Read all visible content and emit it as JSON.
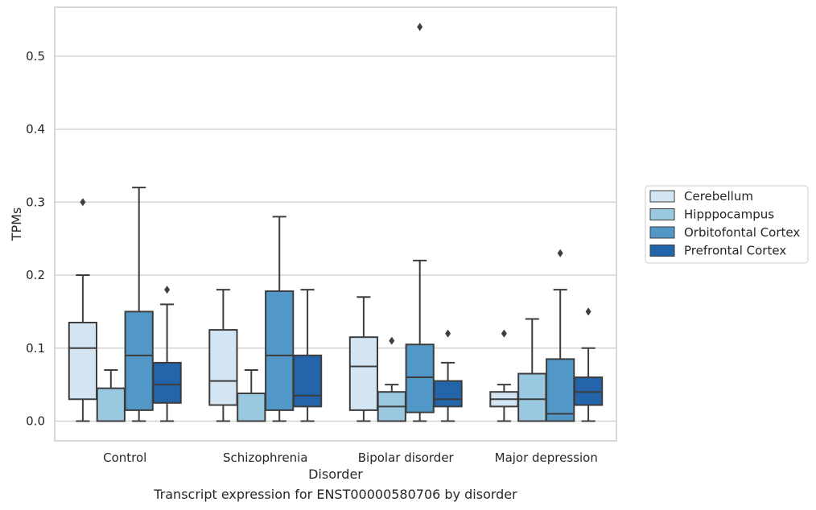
{
  "chart_data": {
    "type": "box",
    "xlabel": "Disorder",
    "ylabel": "TPMs",
    "caption": "Transcript expression for ENST00000580706 by disorder",
    "ylim": [
      -0.027,
      0.567
    ],
    "yticks": [
      0.0,
      0.1,
      0.2,
      0.3,
      0.4,
      0.5
    ],
    "ytick_labels": [
      "0.0",
      "0.1",
      "0.2",
      "0.3",
      "0.4",
      "0.5"
    ],
    "grid": "horizontal",
    "legend_position": "right",
    "categories": [
      "Control",
      "Schizophrenia",
      "Bipolar disorder",
      "Major depression"
    ],
    "series": [
      {
        "name": "Cerebellum",
        "color": "#d3e4f3",
        "boxes": [
          {
            "whislo": 0.0,
            "q1": 0.03,
            "med": 0.1,
            "q3": 0.135,
            "whishi": 0.2,
            "fliers": [
              0.3
            ]
          },
          {
            "whislo": 0.0,
            "q1": 0.022,
            "med": 0.055,
            "q3": 0.125,
            "whishi": 0.18,
            "fliers": []
          },
          {
            "whislo": 0.0,
            "q1": 0.015,
            "med": 0.075,
            "q3": 0.115,
            "whishi": 0.17,
            "fliers": []
          },
          {
            "whislo": 0.0,
            "q1": 0.02,
            "med": 0.03,
            "q3": 0.04,
            "whishi": 0.05,
            "fliers": [
              0.12
            ]
          }
        ]
      },
      {
        "name": "Hipppocampus",
        "color": "#9ac8e0",
        "boxes": [
          {
            "whislo": 0.0,
            "q1": 0.0,
            "med": 0.0,
            "q3": 0.045,
            "whishi": 0.07,
            "fliers": []
          },
          {
            "whislo": 0.0,
            "q1": 0.0,
            "med": 0.0,
            "q3": 0.038,
            "whishi": 0.07,
            "fliers": []
          },
          {
            "whislo": 0.0,
            "q1": 0.0,
            "med": 0.02,
            "q3": 0.04,
            "whishi": 0.05,
            "fliers": [
              0.11
            ]
          },
          {
            "whislo": 0.0,
            "q1": 0.0,
            "med": 0.03,
            "q3": 0.065,
            "whishi": 0.14,
            "fliers": []
          }
        ]
      },
      {
        "name": "Orbitofontal Cortex",
        "color": "#5198c8",
        "boxes": [
          {
            "whislo": 0.0,
            "q1": 0.015,
            "med": 0.09,
            "q3": 0.15,
            "whishi": 0.32,
            "fliers": []
          },
          {
            "whislo": 0.0,
            "q1": 0.015,
            "med": 0.09,
            "q3": 0.178,
            "whishi": 0.28,
            "fliers": []
          },
          {
            "whislo": 0.0,
            "q1": 0.012,
            "med": 0.06,
            "q3": 0.105,
            "whishi": 0.22,
            "fliers": [
              0.54
            ]
          },
          {
            "whislo": 0.0,
            "q1": 0.0,
            "med": 0.01,
            "q3": 0.085,
            "whishi": 0.18,
            "fliers": [
              0.23
            ]
          }
        ]
      },
      {
        "name": "Prefrontal Cortex",
        "color": "#2364aa",
        "boxes": [
          {
            "whislo": 0.0,
            "q1": 0.025,
            "med": 0.05,
            "q3": 0.08,
            "whishi": 0.16,
            "fliers": [
              0.18
            ]
          },
          {
            "whislo": 0.0,
            "q1": 0.02,
            "med": 0.035,
            "q3": 0.09,
            "whishi": 0.18,
            "fliers": []
          },
          {
            "whislo": 0.0,
            "q1": 0.02,
            "med": 0.03,
            "q3": 0.055,
            "whishi": 0.08,
            "fliers": [
              0.12
            ]
          },
          {
            "whislo": 0.0,
            "q1": 0.022,
            "med": 0.04,
            "q3": 0.06,
            "whishi": 0.1,
            "fliers": [
              0.15
            ]
          }
        ]
      }
    ]
  }
}
